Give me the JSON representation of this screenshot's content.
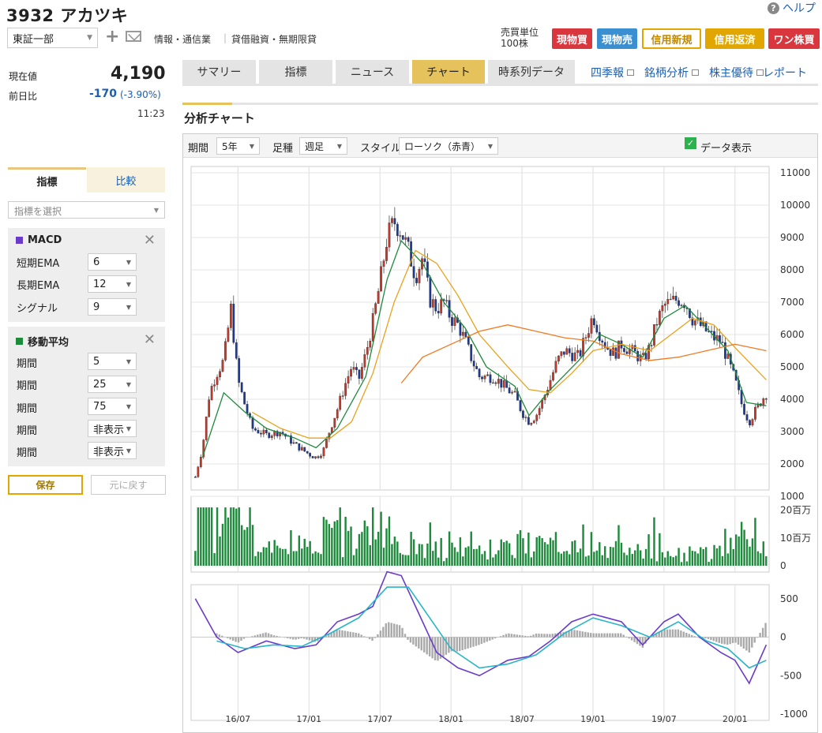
{
  "header": {
    "title": "3932 アカツキ",
    "help_label": "ヘルプ",
    "market": "東証一部",
    "industry": "情報・通信業",
    "separator": "|",
    "margin_info": "貸借融資・無期限貸",
    "unit_label": "売買単位",
    "unit_value": "100株",
    "buttons": [
      "現物買",
      "現物売",
      "信用新規",
      "信用返済",
      "ワン株買"
    ]
  },
  "quote": {
    "current_label": "現在値",
    "current_value": "4,190",
    "change_label": "前日比",
    "change_value": "-170",
    "change_pct": "(-3.90%)",
    "time": "11:23"
  },
  "left_panel": {
    "tabs": [
      "指標",
      "比較"
    ],
    "indicator_placeholder": "指標を選択",
    "macd": {
      "title": "MACD",
      "color": "#6a3bc9",
      "rows": [
        {
          "label": "短期EMA",
          "value": "6"
        },
        {
          "label": "長期EMA",
          "value": "12"
        },
        {
          "label": "シグナル",
          "value": "9"
        }
      ]
    },
    "ma": {
      "title": "移動平均",
      "color": "#1e8a3c",
      "rows": [
        {
          "label": "期間",
          "value": "5"
        },
        {
          "label": "期間",
          "value": "25"
        },
        {
          "label": "期間",
          "value": "75"
        },
        {
          "label": "期間",
          "value": "非表示"
        },
        {
          "label": "期間",
          "value": "非表示"
        }
      ]
    },
    "save_label": "保存",
    "reset_label": "元に戻す"
  },
  "main_tabs": [
    "サマリー",
    "指標",
    "ニュース",
    "チャート",
    "時系列データ"
  ],
  "active_tab": "チャート",
  "main_links": [
    "四季報",
    "銘柄分析",
    "株主優待",
    "レポート"
  ],
  "section_title": "分析チャート",
  "chart_controls": {
    "period_label": "期間",
    "period_value": "5年",
    "bar_label": "足種",
    "bar_value": "週足",
    "style_label": "スタイル",
    "style_value": "ローソク（赤青）",
    "data_display_label": "データ表示",
    "data_display_checked": true
  },
  "chart_data": [
    {
      "type": "candlestick",
      "bar": "weekly",
      "x_ticks": [
        "16/07",
        "17/01",
        "17/07",
        "18/01",
        "18/07",
        "19/01",
        "19/07",
        "20/01"
      ],
      "y_ticks": [
        "11000",
        "10000",
        "9000",
        "8000",
        "7000",
        "6000",
        "5000",
        "4000",
        "3000",
        "2000",
        "1000"
      ],
      "ylim": [
        1000,
        11000
      ],
      "up_color": "#c0392b",
      "down_color": "#1f3a93",
      "close_path": [
        [
          2016.2,
          1600
        ],
        [
          2016.25,
          2500
        ],
        [
          2016.3,
          4200
        ],
        [
          2016.35,
          4800
        ],
        [
          2016.4,
          5200
        ],
        [
          2016.45,
          6800
        ],
        [
          2016.5,
          4600
        ],
        [
          2016.55,
          3800
        ],
        [
          2016.6,
          3100
        ],
        [
          2016.7,
          2900
        ],
        [
          2016.8,
          3000
        ],
        [
          2016.9,
          2600
        ],
        [
          2017.0,
          2300
        ],
        [
          2017.05,
          2200
        ],
        [
          2017.1,
          2400
        ],
        [
          2017.15,
          3100
        ],
        [
          2017.2,
          3700
        ],
        [
          2017.25,
          4400
        ],
        [
          2017.3,
          5000
        ],
        [
          2017.35,
          4600
        ],
        [
          2017.4,
          5400
        ],
        [
          2017.45,
          6400
        ],
        [
          2017.5,
          7600
        ],
        [
          2017.55,
          9000
        ],
        [
          2017.6,
          9500
        ],
        [
          2017.65,
          9200
        ],
        [
          2017.7,
          8600
        ],
        [
          2017.75,
          7800
        ],
        [
          2017.8,
          8400
        ],
        [
          2017.85,
          7100
        ],
        [
          2017.9,
          6800
        ],
        [
          2017.95,
          7000
        ],
        [
          2018.0,
          6500
        ],
        [
          2018.05,
          6300
        ],
        [
          2018.1,
          5800
        ],
        [
          2018.15,
          5200
        ],
        [
          2018.2,
          4700
        ],
        [
          2018.3,
          4700
        ],
        [
          2018.4,
          4300
        ],
        [
          2018.45,
          4100
        ],
        [
          2018.5,
          3600
        ],
        [
          2018.55,
          3300
        ],
        [
          2018.6,
          3500
        ],
        [
          2018.65,
          4000
        ],
        [
          2018.7,
          4600
        ],
        [
          2018.75,
          5200
        ],
        [
          2018.8,
          5500
        ],
        [
          2018.9,
          5300
        ],
        [
          2019.0,
          6600
        ],
        [
          2019.05,
          6000
        ],
        [
          2019.1,
          5600
        ],
        [
          2019.15,
          5400
        ],
        [
          2019.2,
          5700
        ],
        [
          2019.3,
          5400
        ],
        [
          2019.35,
          5200
        ],
        [
          2019.4,
          5600
        ],
        [
          2019.45,
          6400
        ],
        [
          2019.5,
          6900
        ],
        [
          2019.6,
          7100
        ],
        [
          2019.65,
          7000
        ],
        [
          2019.7,
          6500
        ],
        [
          2019.75,
          6300
        ],
        [
          2019.8,
          6100
        ],
        [
          2019.85,
          5900
        ],
        [
          2019.9,
          5800
        ],
        [
          2019.95,
          5200
        ],
        [
          2020.0,
          4600
        ],
        [
          2020.05,
          3800
        ],
        [
          2020.1,
          3300
        ],
        [
          2020.15,
          3700
        ],
        [
          2020.22,
          4190
        ]
      ],
      "ma": [
        {
          "name": "5",
          "color": "#1e8a3c",
          "points": [
            [
              2016.25,
              2200
            ],
            [
              2016.4,
              4200
            ],
            [
              2016.55,
              3600
            ],
            [
              2016.7,
              3100
            ],
            [
              2016.9,
              2800
            ],
            [
              2017.05,
              2500
            ],
            [
              2017.2,
              3100
            ],
            [
              2017.4,
              4700
            ],
            [
              2017.55,
              7700
            ],
            [
              2017.65,
              8900
            ],
            [
              2017.8,
              8200
            ],
            [
              2017.95,
              7000
            ],
            [
              2018.1,
              6200
            ],
            [
              2018.25,
              5000
            ],
            [
              2018.45,
              4400
            ],
            [
              2018.55,
              3500
            ],
            [
              2018.7,
              4300
            ],
            [
              2018.9,
              5200
            ],
            [
              2019.05,
              6000
            ],
            [
              2019.2,
              5700
            ],
            [
              2019.35,
              5300
            ],
            [
              2019.5,
              6500
            ],
            [
              2019.65,
              6900
            ],
            [
              2019.8,
              6200
            ],
            [
              2019.95,
              5500
            ],
            [
              2020.08,
              3900
            ],
            [
              2020.22,
              3800
            ]
          ]
        },
        {
          "name": "25",
          "color": "#e9a21c",
          "points": [
            [
              2016.6,
              3600
            ],
            [
              2016.8,
              3100
            ],
            [
              2017.0,
              2800
            ],
            [
              2017.15,
              2800
            ],
            [
              2017.3,
              3300
            ],
            [
              2017.45,
              4800
            ],
            [
              2017.6,
              7000
            ],
            [
              2017.75,
              8600
            ],
            [
              2017.9,
              8200
            ],
            [
              2018.05,
              7200
            ],
            [
              2018.2,
              6000
            ],
            [
              2018.4,
              5000
            ],
            [
              2018.55,
              4300
            ],
            [
              2018.7,
              4200
            ],
            [
              2018.85,
              4800
            ],
            [
              2019.0,
              5500
            ],
            [
              2019.2,
              5700
            ],
            [
              2019.4,
              5500
            ],
            [
              2019.55,
              6000
            ],
            [
              2019.7,
              6500
            ],
            [
              2019.85,
              6300
            ],
            [
              2020.0,
              5600
            ],
            [
              2020.22,
              4600
            ]
          ]
        },
        {
          "name": "75",
          "color": "#f07a22",
          "points": [
            [
              2017.65,
              4500
            ],
            [
              2017.8,
              5300
            ],
            [
              2018.0,
              5700
            ],
            [
              2018.2,
              6100
            ],
            [
              2018.4,
              6300
            ],
            [
              2018.6,
              6100
            ],
            [
              2018.8,
              5900
            ],
            [
              2019.0,
              5800
            ],
            [
              2019.2,
              5400
            ],
            [
              2019.4,
              5200
            ],
            [
              2019.6,
              5300
            ],
            [
              2019.8,
              5500
            ],
            [
              2020.0,
              5700
            ],
            [
              2020.22,
              5500
            ]
          ]
        }
      ]
    },
    {
      "type": "bar",
      "name": "volume",
      "y_ticks": [
        "20百万",
        "10百万",
        "0"
      ],
      "ylim": [
        0,
        25
      ]
    },
    {
      "type": "line",
      "name": "MACD",
      "y_ticks": [
        "500",
        "0",
        "-500",
        "-1000"
      ],
      "ylim": [
        -1000,
        600
      ],
      "series": [
        {
          "color": "#6a3bc9",
          "points": [
            [
              2016.2,
              500
            ],
            [
              2016.35,
              0
            ],
            [
              2016.5,
              -200
            ],
            [
              2016.7,
              -50
            ],
            [
              2016.9,
              -150
            ],
            [
              2017.05,
              -100
            ],
            [
              2017.2,
              200
            ],
            [
              2017.35,
              300
            ],
            [
              2017.45,
              400
            ],
            [
              2017.55,
              850
            ],
            [
              2017.65,
              800
            ],
            [
              2017.75,
              400
            ],
            [
              2017.9,
              -200
            ],
            [
              2018.05,
              -400
            ],
            [
              2018.2,
              -500
            ],
            [
              2018.4,
              -300
            ],
            [
              2018.55,
              -250
            ],
            [
              2018.7,
              -50
            ],
            [
              2018.85,
              200
            ],
            [
              2019.0,
              300
            ],
            [
              2019.2,
              200
            ],
            [
              2019.35,
              -100
            ],
            [
              2019.5,
              200
            ],
            [
              2019.6,
              300
            ],
            [
              2019.75,
              0
            ],
            [
              2019.9,
              -200
            ],
            [
              2020.0,
              -300
            ],
            [
              2020.1,
              -600
            ],
            [
              2020.22,
              -100
            ]
          ]
        },
        {
          "color": "#26b5c9",
          "points": [
            [
              2016.35,
              -50
            ],
            [
              2016.55,
              -150
            ],
            [
              2016.75,
              -100
            ],
            [
              2016.95,
              -120
            ],
            [
              2017.15,
              50
            ],
            [
              2017.35,
              250
            ],
            [
              2017.55,
              650
            ],
            [
              2017.7,
              650
            ],
            [
              2017.85,
              250
            ],
            [
              2018.0,
              -150
            ],
            [
              2018.2,
              -400
            ],
            [
              2018.4,
              -350
            ],
            [
              2018.6,
              -230
            ],
            [
              2018.8,
              50
            ],
            [
              2019.0,
              250
            ],
            [
              2019.2,
              150
            ],
            [
              2019.4,
              0
            ],
            [
              2019.6,
              200
            ],
            [
              2019.8,
              -50
            ],
            [
              2019.95,
              -150
            ],
            [
              2020.1,
              -400
            ],
            [
              2020.22,
              -300
            ]
          ]
        }
      ]
    }
  ]
}
